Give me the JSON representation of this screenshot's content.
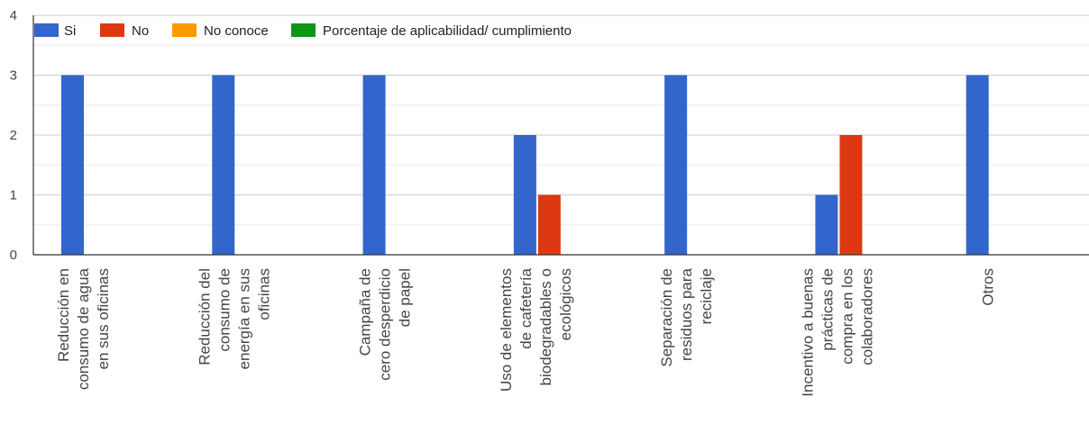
{
  "chart_data": {
    "type": "bar",
    "categories": [
      [
        "Reducción en",
        "consumo de agua",
        "en sus oficinas"
      ],
      [
        "Reducción del",
        "consumo de",
        "energía en sus",
        "oficinas"
      ],
      [
        "Campaña de",
        "cero desperdicio",
        "de papel"
      ],
      [
        "Uso de elementos",
        "de cafetería",
        "biodegradables o",
        "ecológicos"
      ],
      [
        "Separación de",
        "residuos para",
        "reciclaje"
      ],
      [
        "Incentivo a buenas",
        "prácticas de",
        "compra en los",
        "colaboradores"
      ],
      [
        "Otros"
      ]
    ],
    "series": [
      {
        "name": "Si",
        "color": "#3366cc",
        "values": [
          3,
          3,
          3,
          2,
          3,
          1,
          3
        ]
      },
      {
        "name": "No",
        "color": "#dc3912",
        "values": [
          0,
          0,
          0,
          1,
          0,
          2,
          0
        ]
      },
      {
        "name": "No conoce",
        "color": "#ff9900",
        "values": [
          0,
          0,
          0,
          0,
          0,
          0,
          0
        ]
      },
      {
        "name": "Porcentaje de aplicabilidad/ cumplimiento",
        "color": "#109618",
        "values": [
          0,
          0,
          0,
          0,
          0,
          0,
          0
        ]
      }
    ],
    "ylim": [
      0,
      4
    ],
    "yticks": [
      0,
      1,
      2,
      3,
      4
    ],
    "grid": true,
    "legend_position": "top-left",
    "xlabel": "",
    "ylabel": "",
    "title": ""
  }
}
